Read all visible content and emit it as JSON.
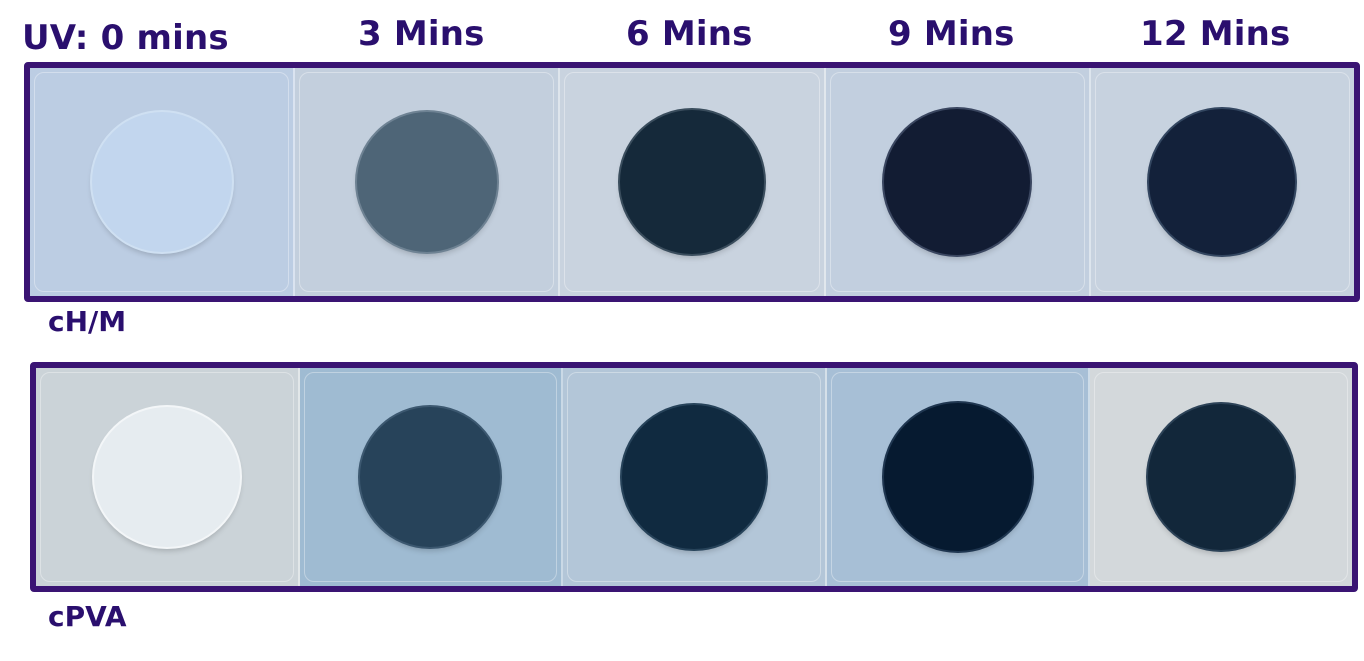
{
  "column_labels": [
    "UV: 0 mins",
    "3 Mins",
    "6 Mins",
    "9 Mins",
    "12 Mins"
  ],
  "rows": [
    {
      "label": "cH/M",
      "tiles": [
        {
          "bg": "#bccde3",
          "disc": "#c2d6ee",
          "disc_border": "#cfe0f2"
        },
        {
          "bg": "#c3cfdd",
          "disc": "#4e6577",
          "disc_border": "#6e8293"
        },
        {
          "bg": "#c9d3df",
          "disc": "#15293a",
          "disc_border": "#3a4d5d"
        },
        {
          "bg": "#c2cfdf",
          "disc": "#121c33",
          "disc_border": "#3a4660"
        },
        {
          "bg": "#c7d2df",
          "disc": "#13213a",
          "disc_border": "#334660"
        }
      ]
    },
    {
      "label": "cPVA",
      "tiles": [
        {
          "bg": "#cbd3d8",
          "disc": "#e6ecf0",
          "disc_border": "#f3f6f8"
        },
        {
          "bg": "#9fbbd2",
          "disc": "#27435a",
          "disc_border": "#3c5870"
        },
        {
          "bg": "#b3c6d8",
          "disc": "#102a40",
          "disc_border": "#27435a"
        },
        {
          "bg": "#a7bfd6",
          "disc": "#061a30",
          "disc_border": "#1f3650"
        },
        {
          "bg": "#d3d8db",
          "disc": "#12273a",
          "disc_border": "#2c4257"
        }
      ]
    }
  ],
  "colors": {
    "frame": "#3a1473",
    "label_text": "#2a0f6e"
  }
}
